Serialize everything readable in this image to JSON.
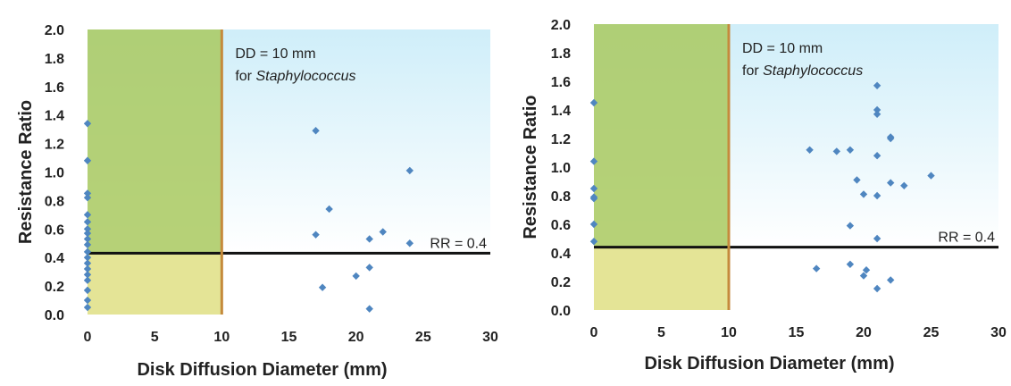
{
  "chart_data": [
    {
      "type": "scatter",
      "xlabel": "Disk Diffusion Diameter (mm)",
      "ylabel": "Resistance Ratio",
      "xlim": [
        0,
        30
      ],
      "ylim": [
        0,
        2.0
      ],
      "xticks": [
        "0",
        "5",
        "10",
        "15",
        "20",
        "25",
        "30"
      ],
      "yticks": [
        "0.0",
        "0.2",
        "0.4",
        "0.6",
        "0.8",
        "1.0",
        "1.2",
        "1.4",
        "1.6",
        "1.8",
        "2.0"
      ],
      "annotations": {
        "dd_line1": "DD = 10 mm",
        "dd_line2_prefix": "for ",
        "dd_line2_italic": "Staphylococcus",
        "rr": "RR = 0.4"
      },
      "thresholds": {
        "dd": 10,
        "rr": 0.43
      },
      "colors": {
        "upper_right": "#cdeef8",
        "shaded_left": "#a9c95f",
        "shaded_left_lower": "#e4e496",
        "threshold_rr": "#111111",
        "threshold_dd": "#c58a3c",
        "marker": "#4f86c0"
      },
      "grid": false,
      "points": [
        [
          0,
          1.34
        ],
        [
          0,
          1.08
        ],
        [
          0,
          0.85
        ],
        [
          0,
          0.82
        ],
        [
          0,
          0.7
        ],
        [
          0,
          0.65
        ],
        [
          0,
          0.6
        ],
        [
          0,
          0.57
        ],
        [
          0,
          0.53
        ],
        [
          0,
          0.49
        ],
        [
          0,
          0.44
        ],
        [
          0,
          0.4
        ],
        [
          0,
          0.36
        ],
        [
          0,
          0.32
        ],
        [
          0,
          0.28
        ],
        [
          0,
          0.24
        ],
        [
          0,
          0.17
        ],
        [
          0,
          0.1
        ],
        [
          0,
          0.05
        ],
        [
          17,
          1.29
        ],
        [
          18,
          0.74
        ],
        [
          17,
          0.56
        ],
        [
          21,
          0.53
        ],
        [
          22,
          0.58
        ],
        [
          24,
          1.01
        ],
        [
          24,
          0.5
        ],
        [
          21,
          0.33
        ],
        [
          20,
          0.27
        ],
        [
          17.5,
          0.19
        ],
        [
          21,
          0.04
        ]
      ]
    },
    {
      "type": "scatter",
      "xlabel": "Disk Diffusion Diameter (mm)",
      "ylabel": "Resistance Ratio",
      "xlim": [
        0,
        30
      ],
      "ylim": [
        0,
        2.0
      ],
      "xticks": [
        "0",
        "5",
        "10",
        "15",
        "20",
        "25",
        "30"
      ],
      "yticks": [
        "0.0",
        "0.2",
        "0.4",
        "0.6",
        "0.8",
        "1.0",
        "1.2",
        "1.4",
        "1.6",
        "1.8",
        "2.0"
      ],
      "annotations": {
        "dd_line1": "DD = 10 mm",
        "dd_line2_prefix": "for ",
        "dd_line2_italic": "Staphylococcus",
        "rr": "RR = 0.4"
      },
      "thresholds": {
        "dd": 10,
        "rr": 0.44
      },
      "colors": {
        "upper_right": "#cdeef8",
        "shaded_left": "#a9c95f",
        "shaded_left_lower": "#e4e496",
        "threshold_rr": "#111111",
        "threshold_dd": "#c58a3c",
        "marker": "#4f86c0"
      },
      "grid": false,
      "points": [
        [
          0,
          1.45
        ],
        [
          0,
          1.04
        ],
        [
          0,
          0.85
        ],
        [
          0,
          0.79
        ],
        [
          0,
          0.78
        ],
        [
          0,
          0.6
        ],
        [
          0,
          0.48
        ],
        [
          16,
          1.12
        ],
        [
          18,
          1.11
        ],
        [
          19,
          1.12
        ],
        [
          21,
          1.57
        ],
        [
          21,
          1.4
        ],
        [
          21,
          1.37
        ],
        [
          22,
          1.21
        ],
        [
          22,
          1.2
        ],
        [
          21,
          1.08
        ],
        [
          19.5,
          0.91
        ],
        [
          20,
          0.81
        ],
        [
          21,
          0.8
        ],
        [
          22,
          0.89
        ],
        [
          23,
          0.87
        ],
        [
          25,
          0.94
        ],
        [
          19,
          0.59
        ],
        [
          21,
          0.5
        ],
        [
          16.5,
          0.29
        ],
        [
          19,
          0.32
        ],
        [
          20.2,
          0.28
        ],
        [
          20,
          0.24
        ],
        [
          21,
          0.15
        ],
        [
          22,
          0.21
        ]
      ]
    }
  ]
}
